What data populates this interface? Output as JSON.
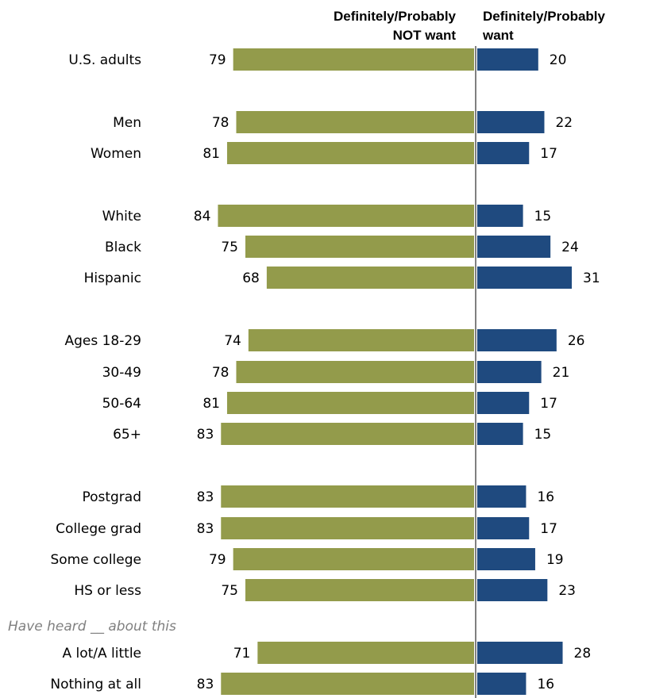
{
  "chart_data": {
    "type": "bar",
    "orientation": "horizontal-diverging",
    "series": [
      {
        "name": "Definitely/Probably NOT want",
        "color": "#939b4b",
        "values": [
          79,
          78,
          81,
          84,
          75,
          68,
          74,
          78,
          81,
          83,
          83,
          83,
          79,
          75,
          71,
          83
        ]
      },
      {
        "name": "Definitely/Probably want",
        "color": "#1f4a7f",
        "values": [
          20,
          22,
          17,
          15,
          24,
          31,
          26,
          21,
          17,
          15,
          16,
          17,
          19,
          23,
          28,
          16
        ]
      }
    ],
    "categories": [
      "U.S. adults",
      "Men",
      "Women",
      "White",
      "Black",
      "Hispanic",
      "Ages 18-29",
      "30-49",
      "50-64",
      "65+",
      "Postgrad",
      "College grad",
      "Some college",
      "HS or less",
      "A lot/A little",
      "Nothing at all"
    ],
    "group_label": "Have heard __ about this",
    "header_left": {
      "line1": "Definitely/Probably",
      "line2": "NOT want"
    },
    "header_right": {
      "line1": "Definitely/Probably",
      "line2": "want"
    },
    "center_line_color": "#808080"
  }
}
